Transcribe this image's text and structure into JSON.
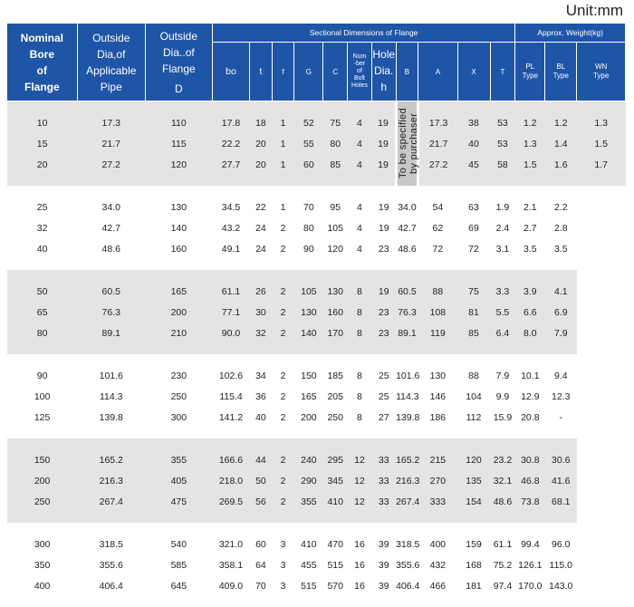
{
  "unit_label": "Unit:mm",
  "headers": {
    "nominal": [
      "Nominal",
      "Bore",
      "of",
      "Flange"
    ],
    "outside_pipe": [
      "Outside",
      "Dia,of",
      "Applicable",
      "Pipe"
    ],
    "outside_flange": [
      "Outside",
      "Dia..of",
      "Flange"
    ],
    "outside_flange_unit": "D",
    "sectional_group": "Sectional Dimensions of Flange",
    "weight_group": "Approx. Weight(kg)",
    "bo": "bo",
    "t": "t",
    "f": "f",
    "G": "G",
    "C": "C",
    "num_bolt": [
      "Num",
      "-ber",
      "of",
      "Bolt",
      "Holes"
    ],
    "hole_dia": [
      "Hole",
      "Dia."
    ],
    "hole_dia_unit": "h",
    "B": "B",
    "A": "A",
    "X": "X",
    "T": "T",
    "pl": [
      "PL",
      "Type"
    ],
    "bl": [
      "BL",
      "Type"
    ],
    "wn": [
      "WN",
      "Type"
    ]
  },
  "b_note": "To be specified by purchaser",
  "groups": [
    [
      [
        "10",
        "17.3",
        "110",
        "17.8",
        "18",
        "1",
        "52",
        "75",
        "4",
        "19",
        "17.3",
        "38",
        "53",
        "1.2",
        "1.2",
        "1.3"
      ],
      [
        "15",
        "21.7",
        "115",
        "22.2",
        "20",
        "1",
        "55",
        "80",
        "4",
        "19",
        "21.7",
        "40",
        "53",
        "1.3",
        "1.4",
        "1.5"
      ],
      [
        "20",
        "27.2",
        "120",
        "27.7",
        "20",
        "1",
        "60",
        "85",
        "4",
        "19",
        "27.2",
        "45",
        "58",
        "1.5",
        "1.6",
        "1.7"
      ]
    ],
    [
      [
        "25",
        "34.0",
        "130",
        "34.5",
        "22",
        "1",
        "70",
        "95",
        "4",
        "19",
        "34.0",
        "54",
        "63",
        "1.9",
        "2.1",
        "2.2"
      ],
      [
        "32",
        "42.7",
        "140",
        "43.2",
        "24",
        "2",
        "80",
        "105",
        "4",
        "19",
        "42.7",
        "62",
        "69",
        "2.4",
        "2.7",
        "2.8"
      ],
      [
        "40",
        "48.6",
        "160",
        "49.1",
        "24",
        "2",
        "90",
        "120",
        "4",
        "23",
        "48.6",
        "72",
        "72",
        "3.1",
        "3.5",
        "3.5"
      ]
    ],
    [
      [
        "50",
        "60.5",
        "165",
        "61.1",
        "26",
        "2",
        "105",
        "130",
        "8",
        "19",
        "60.5",
        "88",
        "75",
        "3.3",
        "3.9",
        "4.1"
      ],
      [
        "65",
        "76.3",
        "200",
        "77.1",
        "30",
        "2",
        "130",
        "160",
        "8",
        "23",
        "76.3",
        "108",
        "81",
        "5.5",
        "6.6",
        "6.9"
      ],
      [
        "80",
        "89.1",
        "210",
        "90.0",
        "32",
        "2",
        "140",
        "170",
        "8",
        "23",
        "89.1",
        "119",
        "85",
        "6.4",
        "8.0",
        "7.9"
      ]
    ],
    [
      [
        "90",
        "101.6",
        "230",
        "102.6",
        "34",
        "2",
        "150",
        "185",
        "8",
        "25",
        "101.6",
        "130",
        "88",
        "7.9",
        "10.1",
        "9.4"
      ],
      [
        "100",
        "114.3",
        "250",
        "115.4",
        "36",
        "2",
        "165",
        "205",
        "8",
        "25",
        "114.3",
        "146",
        "104",
        "9.9",
        "12.9",
        "12.3"
      ],
      [
        "125",
        "139.8",
        "300",
        "141.2",
        "40",
        "2",
        "200",
        "250",
        "8",
        "27",
        "139.8",
        "186",
        "112",
        "15.9",
        "20.8",
        "-"
      ]
    ],
    [
      [
        "150",
        "165.2",
        "355",
        "166.6",
        "44",
        "2",
        "240",
        "295",
        "12",
        "33",
        "165.2",
        "215",
        "120",
        "23.2",
        "30.8",
        "30.6"
      ],
      [
        "200",
        "216.3",
        "405",
        "218.0",
        "50",
        "2",
        "290",
        "345",
        "12",
        "33",
        "216.3",
        "270",
        "135",
        "32.1",
        "46.8",
        "41.6"
      ],
      [
        "250",
        "267.4",
        "475",
        "269.5",
        "56",
        "2",
        "355",
        "410",
        "12",
        "33",
        "267.4",
        "333",
        "154",
        "48.6",
        "73.8",
        "68.1"
      ]
    ],
    [
      [
        "300",
        "318.5",
        "540",
        "321.0",
        "60",
        "3",
        "410",
        "470",
        "16",
        "39",
        "318.5",
        "400",
        "159",
        "61.1",
        "99.4",
        "96.0"
      ],
      [
        "350",
        "355.6",
        "585",
        "358.1",
        "64",
        "3",
        "455",
        "515",
        "16",
        "39",
        "355.6",
        "432",
        "168",
        "75.2",
        "126.1",
        "115.0"
      ],
      [
        "400",
        "406.4",
        "645",
        "409.0",
        "70",
        "3",
        "515",
        "570",
        "16",
        "39",
        "406.4",
        "466",
        "181",
        "97.4",
        "170.0",
        "143.0"
      ]
    ]
  ]
}
